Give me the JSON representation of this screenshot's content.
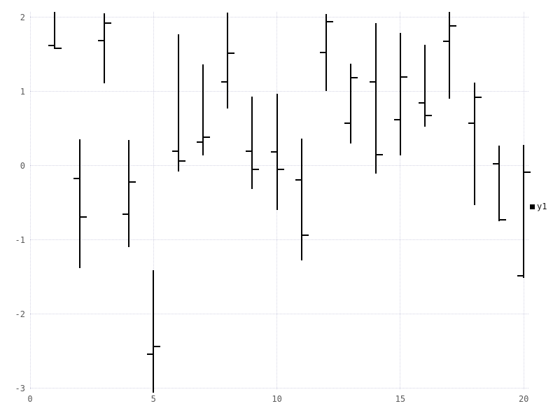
{
  "chart_data": {
    "type": "ohlc",
    "title": "",
    "xlabel": "",
    "ylabel": "",
    "xlim": [
      0,
      20
    ],
    "ylim": [
      -3,
      2.1
    ],
    "x_ticks": [
      0,
      5,
      10,
      15,
      20
    ],
    "y_ticks": [
      2,
      1,
      0,
      -1,
      -2,
      -3
    ],
    "grid": "dotted",
    "legend_position": "right-middle",
    "colors": {
      "bar": "#000000",
      "grid": "#d4d4e4",
      "tick_label": "#5a5a5a",
      "background": "#ffffff"
    },
    "series": [
      {
        "name": "y1",
        "marker": "filled-square",
        "points": [
          {
            "x": 1,
            "open": 1.62,
            "high": 2.07,
            "low": 1.57,
            "close": 1.58
          },
          {
            "x": 2,
            "open": -0.17,
            "high": 0.35,
            "low": -1.38,
            "close": -0.69
          },
          {
            "x": 3,
            "open": 1.68,
            "high": 2.05,
            "low": 1.11,
            "close": 1.92
          },
          {
            "x": 4,
            "open": -0.66,
            "high": 0.34,
            "low": -1.1,
            "close": -0.22
          },
          {
            "x": 5,
            "open": -2.54,
            "high": -1.41,
            "low": -3.06,
            "close": -2.44
          },
          {
            "x": 6,
            "open": 0.19,
            "high": 1.77,
            "low": -0.08,
            "close": 0.06
          },
          {
            "x": 7,
            "open": 0.32,
            "high": 1.36,
            "low": 0.14,
            "close": 0.38
          },
          {
            "x": 8,
            "open": 1.13,
            "high": 2.06,
            "low": 0.77,
            "close": 1.51
          },
          {
            "x": 9,
            "open": 0.19,
            "high": 0.93,
            "low": -0.32,
            "close": -0.05
          },
          {
            "x": 10,
            "open": 0.18,
            "high": 0.97,
            "low": -0.6,
            "close": -0.05
          },
          {
            "x": 11,
            "open": -0.19,
            "high": 0.36,
            "low": -1.28,
            "close": -0.94
          },
          {
            "x": 12,
            "open": 1.52,
            "high": 2.04,
            "low": 1.0,
            "close": 1.94
          },
          {
            "x": 13,
            "open": 0.57,
            "high": 1.37,
            "low": 0.3,
            "close": 1.18
          },
          {
            "x": 14,
            "open": 1.13,
            "high": 1.92,
            "low": -0.11,
            "close": 0.15
          },
          {
            "x": 15,
            "open": 0.62,
            "high": 1.79,
            "low": 0.14,
            "close": 1.19
          },
          {
            "x": 16,
            "open": 0.84,
            "high": 1.63,
            "low": 0.52,
            "close": 0.67
          },
          {
            "x": 17,
            "open": 1.67,
            "high": 2.07,
            "low": 0.9,
            "close": 1.88
          },
          {
            "x": 18,
            "open": 0.57,
            "high": 1.12,
            "low": -0.53,
            "close": 0.92
          },
          {
            "x": 19,
            "open": 0.02,
            "high": 0.27,
            "low": -0.75,
            "close": -0.73
          },
          {
            "x": 20,
            "open": -1.49,
            "high": 0.28,
            "low": -1.51,
            "close": -0.09
          }
        ]
      }
    ]
  },
  "legend": {
    "label": "y1"
  }
}
